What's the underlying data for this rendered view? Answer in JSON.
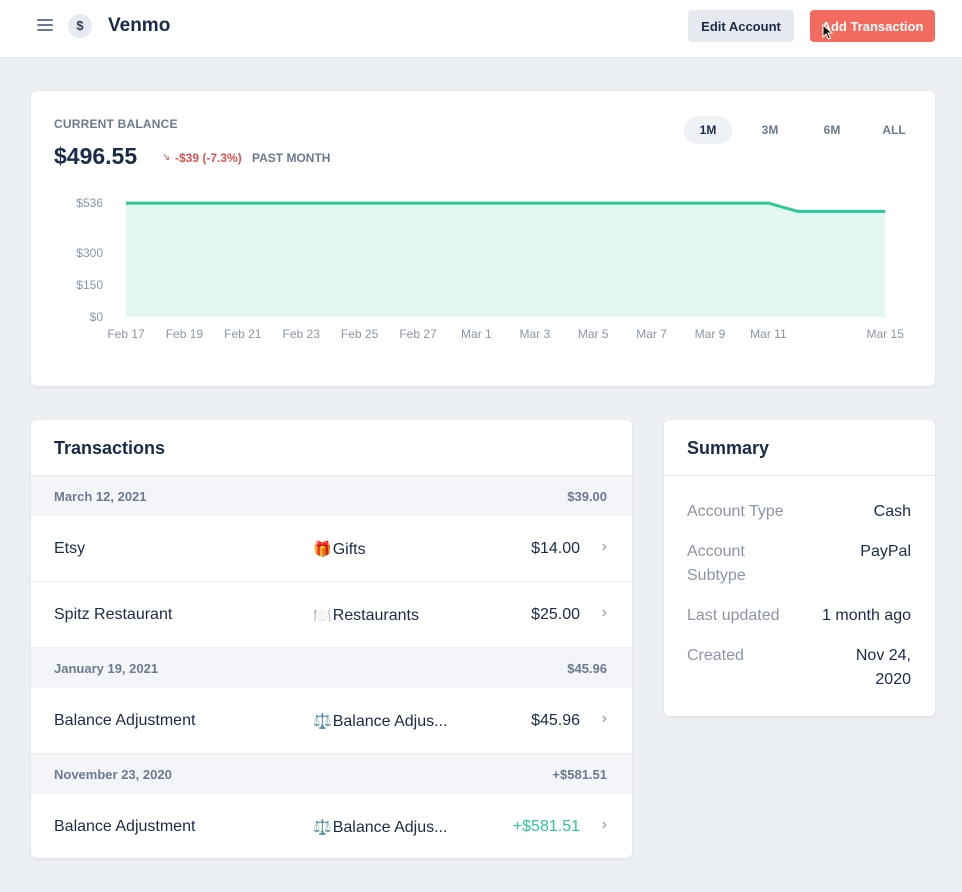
{
  "app": {
    "name": "Venmo",
    "logo_glyph": "$"
  },
  "header": {
    "edit_label": "Edit Account",
    "add_label": "Add Transaction"
  },
  "balance": {
    "label": "CURRENT BALANCE",
    "amount": "$496.55",
    "change_arrow": "↘",
    "change": "-$39 (-7.3%)",
    "period": "PAST MONTH",
    "ranges": [
      "1M",
      "3M",
      "6M",
      "ALL"
    ],
    "active_range": "1M"
  },
  "chart_data": {
    "type": "area",
    "x": [
      "Feb 17",
      "Feb 19",
      "Feb 21",
      "Feb 23",
      "Feb 25",
      "Feb 27",
      "Mar 1",
      "Mar 3",
      "Mar 5",
      "Mar 7",
      "Mar 9",
      "Mar 11",
      "Mar 12",
      "Mar 15"
    ],
    "values": [
      535.55,
      535.55,
      535.55,
      535.55,
      535.55,
      535.55,
      535.55,
      535.55,
      535.55,
      535.55,
      535.55,
      535.55,
      496.55,
      496.55
    ],
    "x_tick_labels": [
      "Feb 17",
      "Feb 19",
      "Feb 21",
      "Feb 23",
      "Feb 25",
      "Feb 27",
      "Mar 1",
      "Mar 3",
      "Mar 5",
      "Mar 7",
      "Mar 9",
      "Mar 11",
      "Mar 15"
    ],
    "y_tick_values": [
      0,
      150,
      300,
      536
    ],
    "y_tick_labels": [
      "$0",
      "$150",
      "$300",
      "$536"
    ],
    "ylim": [
      0,
      536
    ],
    "line_color": "#2dc79a",
    "fill_color": "#e3f8f1",
    "grid": false,
    "title": "",
    "xlabel": "",
    "ylabel": ""
  },
  "transactions": {
    "title": "Transactions",
    "groups": [
      {
        "date": "March 12, 2021",
        "total": "$39.00",
        "items": [
          {
            "name": "Etsy",
            "icon": "🎁",
            "category": "Gifts",
            "amount": "$14.00",
            "positive": false
          },
          {
            "name": "Spitz Restaurant",
            "icon": "🍽️",
            "category": "Restaurants",
            "amount": "$25.00",
            "positive": false
          }
        ]
      },
      {
        "date": "January 19, 2021",
        "total": "$45.96",
        "items": [
          {
            "name": "Balance Adjustment",
            "icon": "⚖️",
            "category": "Balance Adjus...",
            "amount": "$45.96",
            "positive": false
          }
        ]
      },
      {
        "date": "November 23, 2020",
        "total": "+$581.51",
        "items": [
          {
            "name": "Balance Adjustment",
            "icon": "⚖️",
            "category": "Balance Adjus...",
            "amount": "+$581.51",
            "positive": true
          }
        ]
      }
    ]
  },
  "summary": {
    "title": "Summary",
    "rows": [
      {
        "label": "Account Type",
        "value": "Cash"
      },
      {
        "label": "Account Subtype",
        "value": "PayPal"
      },
      {
        "label": "Last updated",
        "value": "1 month ago"
      },
      {
        "label": "Created",
        "value": "Nov 24, 2020"
      }
    ]
  },
  "colors": {
    "accent": "#f26b5e",
    "positive": "#2dc79a",
    "negative": "#d9534f"
  }
}
